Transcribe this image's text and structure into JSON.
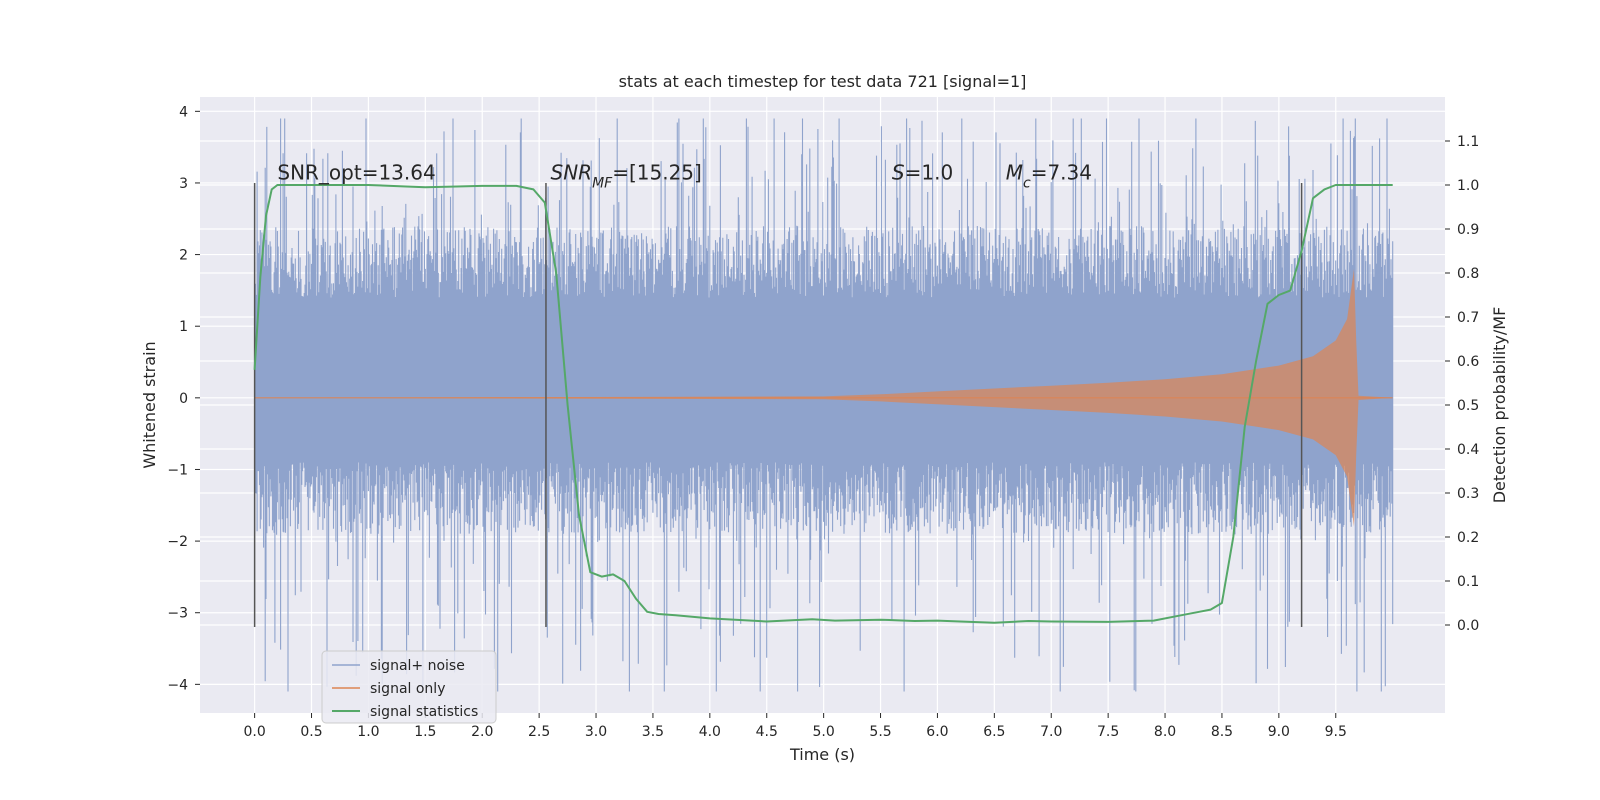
{
  "chart_data": {
    "type": "line",
    "title": "stats at each timestep for test data 721 [signal=1]",
    "xlabel": "Time (s)",
    "ylabel_left": "Whitened strain",
    "ylabel_right": "Detection probability/MF",
    "xlim": [
      -0.48,
      10.46
    ],
    "ylim_left": [
      -4.4,
      4.2
    ],
    "ylim_right": [
      -0.2,
      1.2
    ],
    "x_ticks": [
      "0.0",
      "0.5",
      "1.0",
      "1.5",
      "2.0",
      "2.5",
      "3.0",
      "3.5",
      "4.0",
      "4.5",
      "5.0",
      "5.5",
      "6.0",
      "6.5",
      "7.0",
      "7.5",
      "8.0",
      "8.5",
      "9.0",
      "9.5"
    ],
    "y_ticks_left": [
      "−4",
      "−3",
      "−2",
      "−1",
      "0",
      "1",
      "2",
      "3",
      "4"
    ],
    "y_ticks_right": [
      "0.0",
      "0.1",
      "0.2",
      "0.3",
      "0.4",
      "0.5",
      "0.6",
      "0.7",
      "0.8",
      "0.9",
      "1.0",
      "1.1"
    ],
    "grid": true,
    "colors": {
      "noise": "#8fa3cc",
      "signal": "#dd8452",
      "stats": "#55a868",
      "vline": "#555555",
      "background": "#eaeaf2"
    },
    "annotations": [
      {
        "x": 0.2,
        "y": 3.05,
        "parts": [
          {
            "text": "SNR_opt=13.64",
            "italic": false
          }
        ]
      },
      {
        "x": 2.6,
        "y": 3.05,
        "parts": [
          {
            "text": "SNR",
            "italic": true
          },
          {
            "text": "MF",
            "italic": true,
            "sub": true
          },
          {
            "text": "=[15.25]",
            "italic": false
          }
        ]
      },
      {
        "x": 5.6,
        "y": 3.05,
        "parts": [
          {
            "text": "S",
            "italic": true
          },
          {
            "text": "=1.0",
            "italic": false
          }
        ]
      },
      {
        "x": 6.6,
        "y": 3.05,
        "parts": [
          {
            "text": "M",
            "italic": true
          },
          {
            "text": "c",
            "italic": true,
            "sub": true
          },
          {
            "text": "=7.34",
            "italic": false
          }
        ]
      }
    ],
    "vlines": [
      {
        "x": 0.0,
        "ymin": -3.2,
        "ymax": 3.0
      },
      {
        "x": 2.56,
        "ymin": -3.2,
        "ymax": 3.0
      },
      {
        "x": 9.2,
        "ymin": -3.2,
        "ymax": 3.0
      }
    ],
    "noise_band": {
      "x_start": 0.0,
      "x_end": 10.0,
      "typical_low": -1.3,
      "typical_high": 1.8,
      "peak_low": -4.1,
      "peak_high": 3.9
    },
    "signal_envelope": {
      "x": [
        0.0,
        5.0,
        5.5,
        6.0,
        6.5,
        7.0,
        7.5,
        8.0,
        8.5,
        9.0,
        9.3,
        9.5,
        9.6,
        9.66,
        9.68,
        9.7,
        10.0
      ],
      "amplitude": [
        0.0,
        0.02,
        0.05,
        0.09,
        0.13,
        0.17,
        0.21,
        0.26,
        0.33,
        0.45,
        0.58,
        0.8,
        1.1,
        1.8,
        0.8,
        0.03,
        0.0
      ]
    },
    "series": [
      {
        "name": "signal+ noise",
        "role": "noise"
      },
      {
        "name": "signal only",
        "role": "signal"
      },
      {
        "name": "signal statistics",
        "role": "stats",
        "x": [
          0.0,
          0.05,
          0.1,
          0.15,
          0.2,
          0.3,
          0.5,
          1.0,
          1.5,
          2.0,
          2.3,
          2.45,
          2.55,
          2.65,
          2.75,
          2.85,
          2.95,
          3.05,
          3.15,
          3.25,
          3.35,
          3.45,
          3.55,
          3.7,
          4.0,
          4.5,
          4.9,
          5.1,
          5.5,
          5.8,
          6.0,
          6.2,
          6.5,
          6.8,
          7.0,
          7.5,
          7.9,
          8.1,
          8.3,
          8.4,
          8.5,
          8.6,
          8.7,
          8.8,
          8.9,
          9.0,
          9.1,
          9.2,
          9.3,
          9.4,
          9.5,
          9.6,
          10.0
        ],
        "y": [
          0.58,
          0.79,
          0.93,
          0.99,
          1.0,
          1.0,
          1.0,
          1.0,
          0.995,
          0.998,
          0.998,
          0.99,
          0.96,
          0.8,
          0.5,
          0.25,
          0.12,
          0.11,
          0.115,
          0.1,
          0.06,
          0.03,
          0.025,
          0.022,
          0.015,
          0.008,
          0.013,
          0.01,
          0.012,
          0.009,
          0.01,
          0.008,
          0.005,
          0.009,
          0.008,
          0.007,
          0.01,
          0.02,
          0.03,
          0.035,
          0.05,
          0.2,
          0.45,
          0.6,
          0.73,
          0.75,
          0.76,
          0.85,
          0.97,
          0.99,
          1.0,
          1.0,
          1.0
        ]
      }
    ],
    "legend": {
      "position": "lower-left"
    }
  }
}
